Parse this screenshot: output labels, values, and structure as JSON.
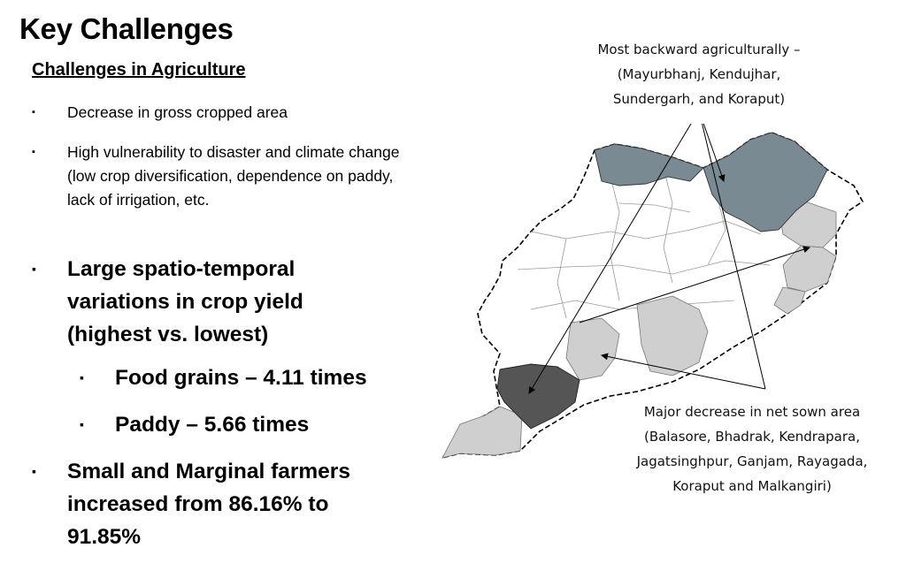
{
  "slide": {
    "title": "Key Challenges",
    "subtitle": "Challenges in Agriculture",
    "bullet_mark": "▪"
  },
  "bullets": {
    "b1": "Decrease in gross cropped area",
    "b2": "High vulnerability to disaster and climate change (low crop diversification, dependence on paddy, lack of irrigation, etc.",
    "b3": "Large spatio-temporal variations in crop yield (highest vs. lowest)",
    "b3a": "Food grains – 4.11 times",
    "b3b": "Paddy – 5.66 times",
    "b4": "Small and Marginal farmers increased from 86.16% to 91.85%"
  },
  "map": {
    "note_top_line1": "Most backward agriculturally –",
    "note_top_line2": "(Mayurbhanj, Kendujhar,",
    "note_top_line3": "Sundergarh, and Koraput)",
    "note_bottom_line1": "Major decrease in net sown area",
    "note_bottom_line2": "(Balasore, Bhadrak, Kendrapara,",
    "note_bottom_line3": "Jagatsinghpur, Ganjam, Rayagada,",
    "note_bottom_line4": "Koraput and Malkangiri)",
    "colors": {
      "backward": "#7a8a92",
      "decrease": "#cfcfcf",
      "both": "#555555",
      "other": "#ffffff",
      "outline": "#000000"
    }
  }
}
